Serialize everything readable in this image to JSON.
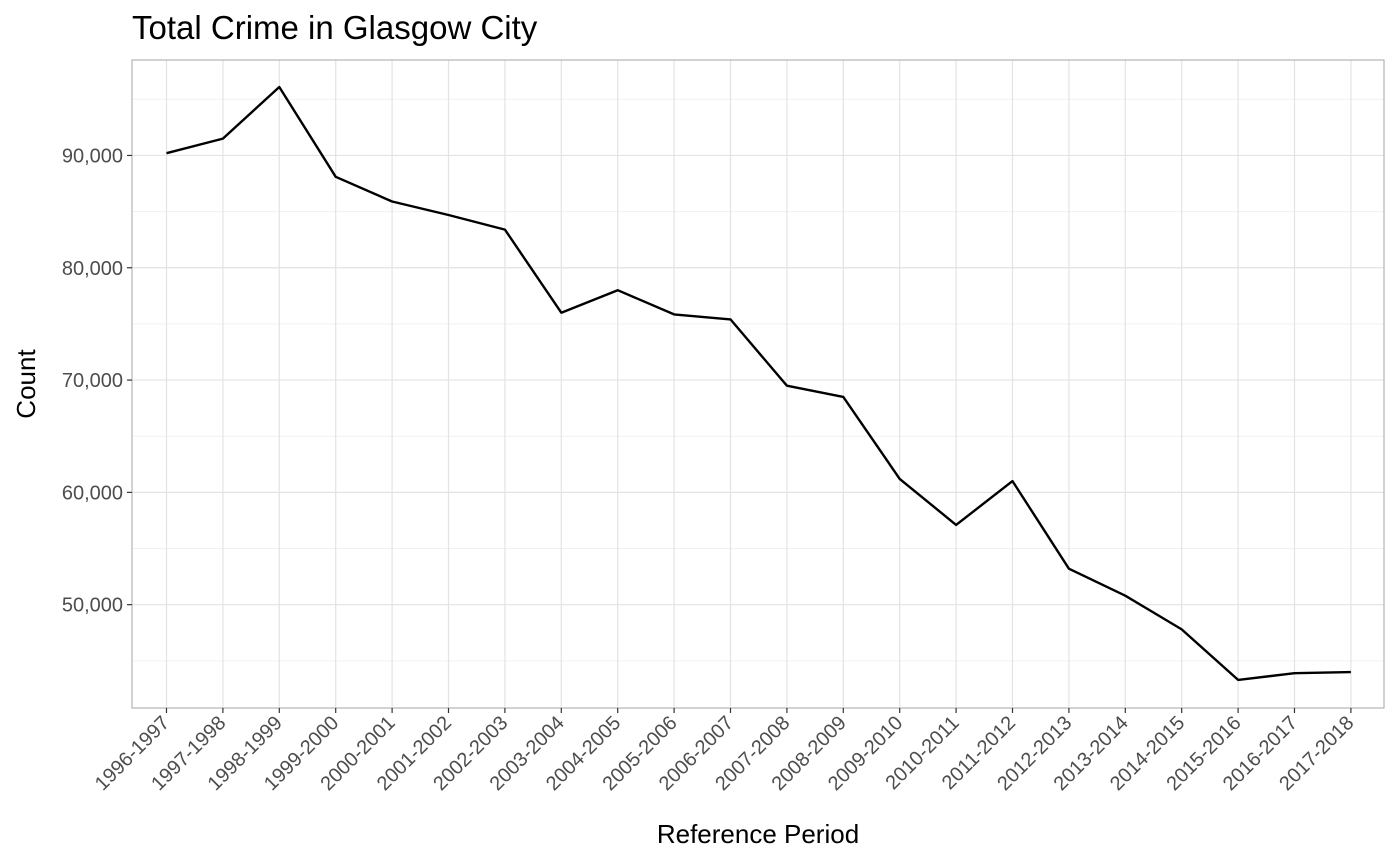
{
  "chart_data": {
    "type": "line",
    "title": "Total Crime in Glasgow City",
    "xlabel": "Reference Period",
    "ylabel": "Count",
    "categories": [
      "1996-1997",
      "1997-1998",
      "1998-1999",
      "1999-2000",
      "2000-2001",
      "2001-2002",
      "2002-2003",
      "2003-2004",
      "2004-2005",
      "2005-2006",
      "2006-2007",
      "2007-2008",
      "2008-2009",
      "2009-2010",
      "2010-2011",
      "2011-2012",
      "2012-2013",
      "2013-2014",
      "2014-2015",
      "2015-2016",
      "2016-2017",
      "2017-2018"
    ],
    "values": [
      90200,
      91500,
      96100,
      88100,
      85900,
      84700,
      83400,
      76000,
      78000,
      75850,
      75400,
      69500,
      68500,
      61200,
      57100,
      61000,
      53200,
      50800,
      47800,
      43300,
      43900,
      44000
    ],
    "yticks": [
      50000,
      60000,
      70000,
      80000,
      90000
    ],
    "ytick_labels": [
      "50,000",
      "60,000",
      "70,000",
      "80,000",
      "90,000"
    ],
    "ylim": [
      40800,
      98500
    ],
    "grid": true,
    "legend": "none",
    "colors": {
      "line": "#000000",
      "panel_border": "#b3b3b3",
      "grid_major": "#e3e3e3",
      "grid_minor": "#f1f1f1"
    }
  }
}
